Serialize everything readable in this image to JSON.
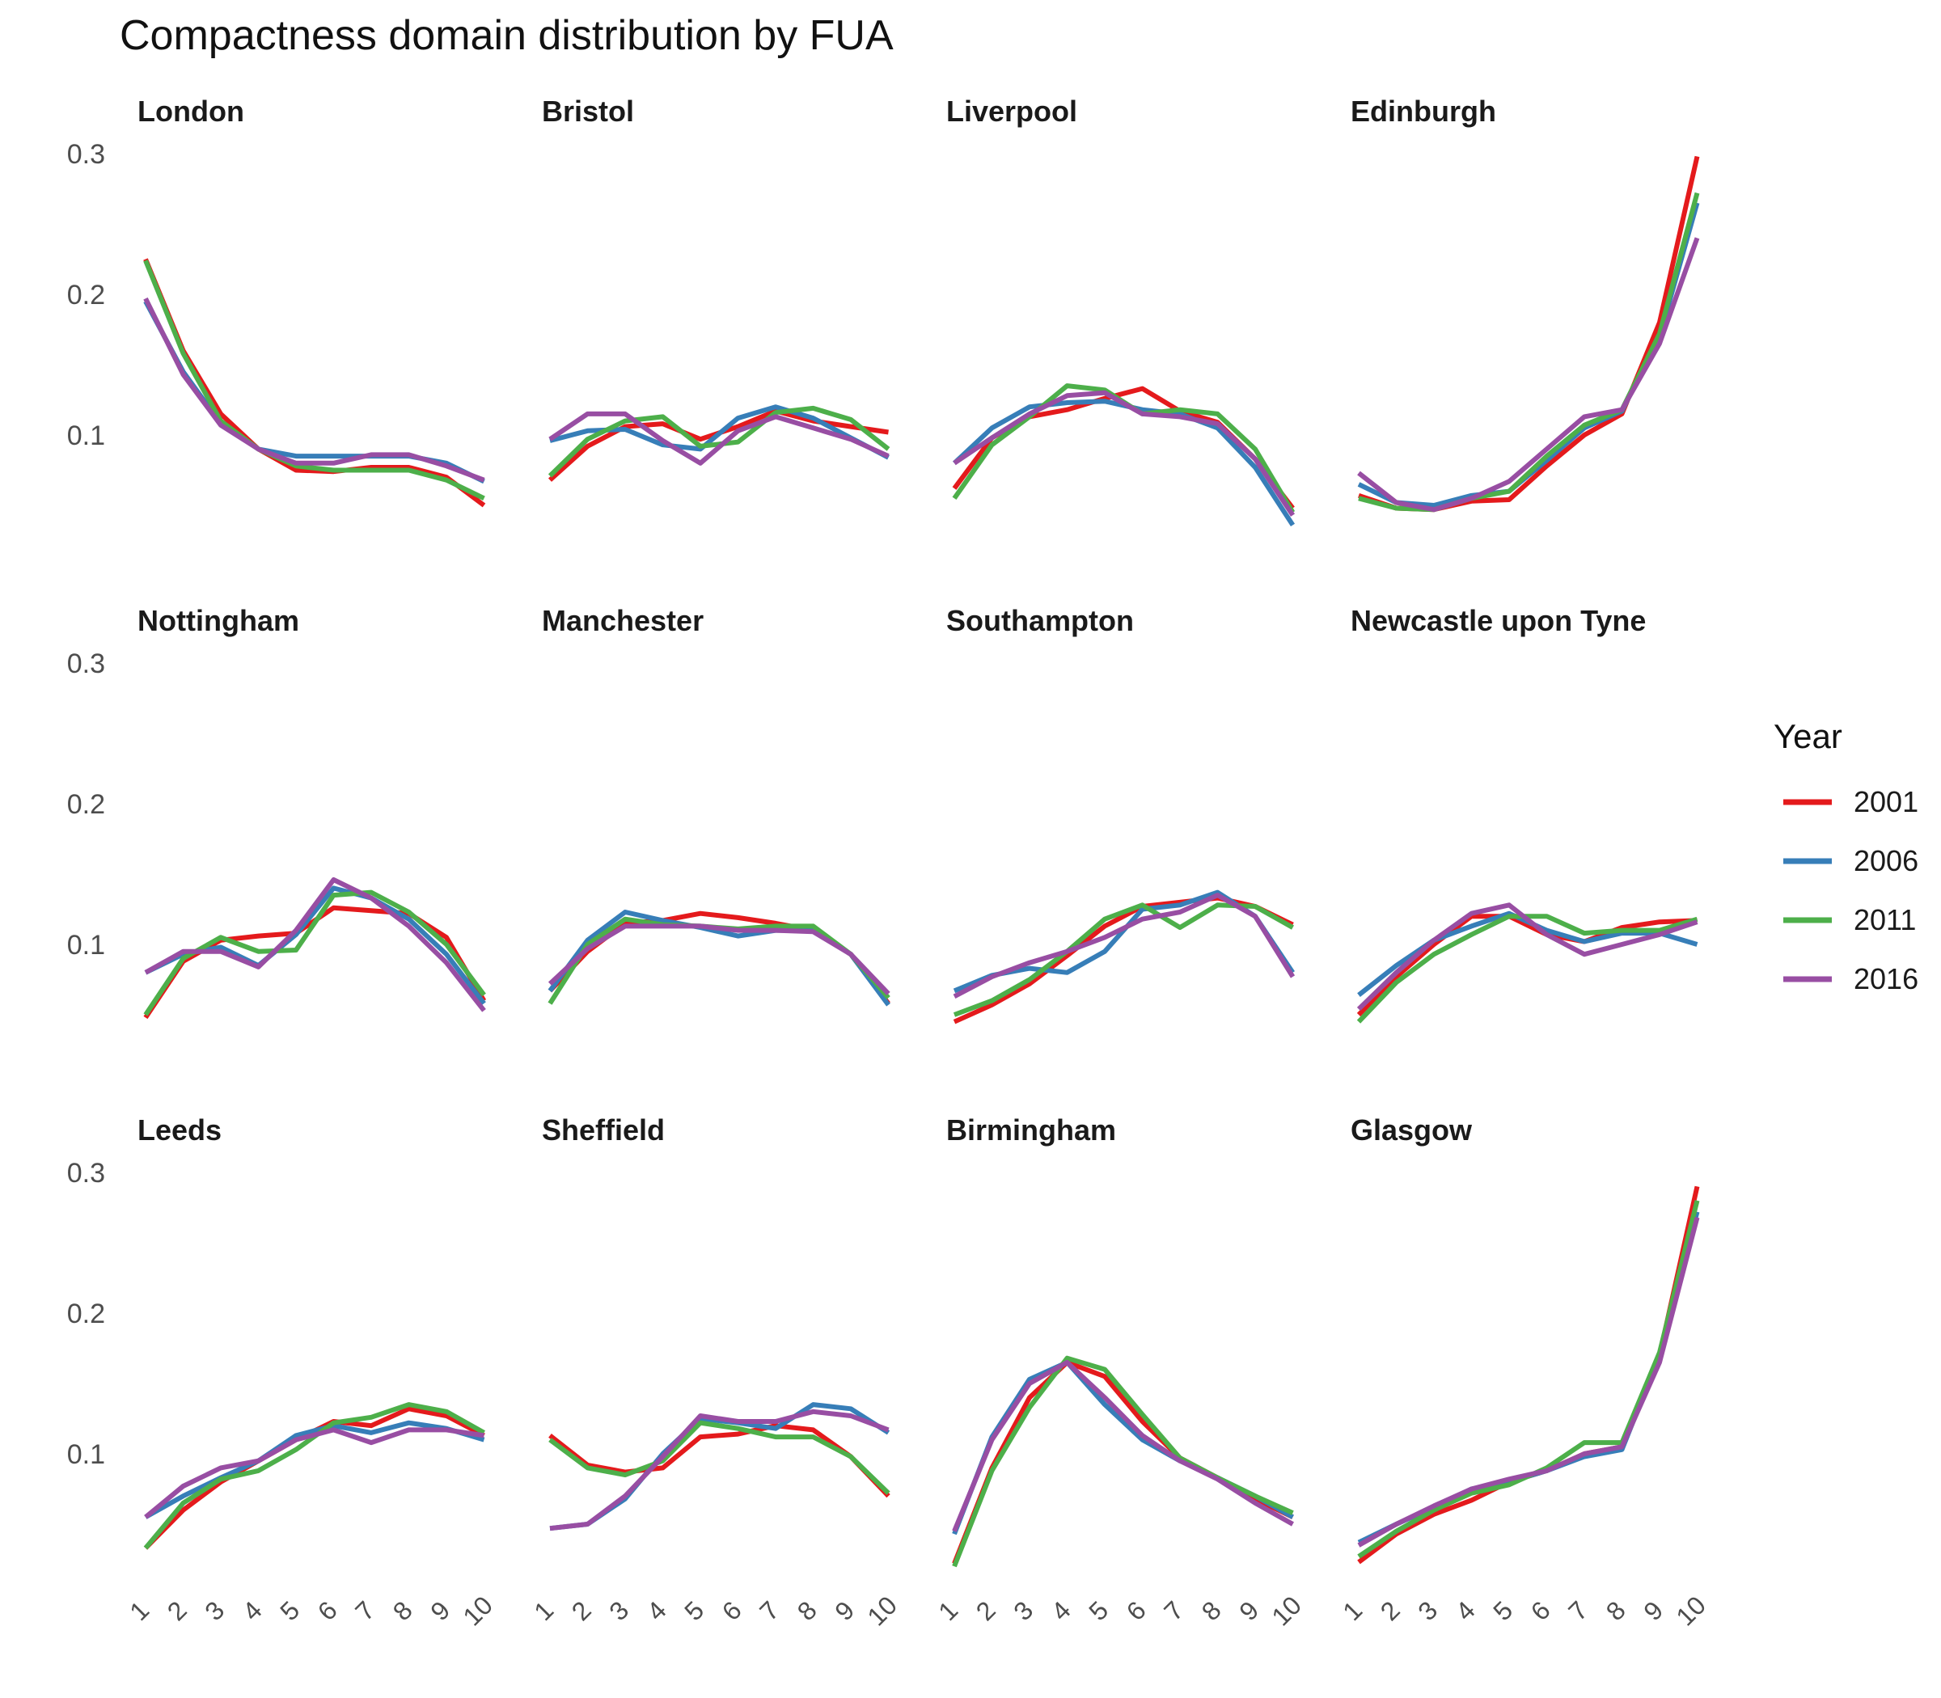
{
  "chart_data": {
    "type": "line",
    "title": "Compactness domain distribution by FUA",
    "xlabel": "",
    "ylabel": "",
    "x": [
      1,
      2,
      3,
      4,
      5,
      6,
      7,
      8,
      9,
      10
    ],
    "ylim": [
      0.02,
      0.3
    ],
    "yticks": [
      0.1,
      0.2,
      0.3
    ],
    "grid": false,
    "legend": {
      "title": "Year",
      "placement": "right",
      "entries": [
        "2001",
        "2006",
        "2011",
        "2016"
      ]
    },
    "colors": {
      "2001": "#E41A1C",
      "2006": "#377EB8",
      "2011": "#4DAF4A",
      "2016": "#984EA3"
    },
    "panels": [
      {
        "name": "London",
        "series": [
          {
            "name": "2001",
            "values": [
              0.225,
              0.16,
              0.115,
              0.09,
              0.075,
              0.074,
              0.077,
              0.077,
              0.07,
              0.05
            ]
          },
          {
            "name": "2006",
            "values": [
              0.195,
              0.145,
              0.108,
              0.09,
              0.085,
              0.085,
              0.085,
              0.085,
              0.08,
              0.067
            ]
          },
          {
            "name": "2011",
            "values": [
              0.224,
              0.158,
              0.11,
              0.09,
              0.078,
              0.075,
              0.075,
              0.075,
              0.068,
              0.055
            ]
          },
          {
            "name": "2016",
            "values": [
              0.197,
              0.143,
              0.107,
              0.09,
              0.08,
              0.08,
              0.086,
              0.086,
              0.078,
              0.068
            ]
          }
        ]
      },
      {
        "name": "Bristol",
        "series": [
          {
            "name": "2001",
            "values": [
              0.068,
              0.092,
              0.106,
              0.108,
              0.097,
              0.106,
              0.117,
              0.11,
              0.106,
              0.102
            ]
          },
          {
            "name": "2006",
            "values": [
              0.096,
              0.103,
              0.104,
              0.093,
              0.09,
              0.112,
              0.12,
              0.112,
              0.098,
              0.084
            ]
          },
          {
            "name": "2011",
            "values": [
              0.071,
              0.097,
              0.11,
              0.113,
              0.092,
              0.095,
              0.116,
              0.119,
              0.111,
              0.09
            ]
          },
          {
            "name": "2016",
            "values": [
              0.097,
              0.115,
              0.115,
              0.096,
              0.08,
              0.103,
              0.113,
              0.105,
              0.097,
              0.085
            ]
          }
        ]
      },
      {
        "name": "Liverpool",
        "series": [
          {
            "name": "2001",
            "values": [
              0.062,
              0.098,
              0.113,
              0.118,
              0.126,
              0.133,
              0.117,
              0.109,
              0.083,
              0.048
            ]
          },
          {
            "name": "2006",
            "values": [
              0.08,
              0.105,
              0.12,
              0.123,
              0.124,
              0.118,
              0.115,
              0.105,
              0.077,
              0.036
            ]
          },
          {
            "name": "2011",
            "values": [
              0.055,
              0.093,
              0.113,
              0.135,
              0.132,
              0.115,
              0.118,
              0.115,
              0.09,
              0.045
            ]
          },
          {
            "name": "2016",
            "values": [
              0.08,
              0.098,
              0.115,
              0.128,
              0.13,
              0.115,
              0.113,
              0.108,
              0.083,
              0.043
            ]
          }
        ]
      },
      {
        "name": "Edinburgh",
        "series": [
          {
            "name": "2001",
            "values": [
              0.057,
              0.048,
              0.047,
              0.053,
              0.054,
              0.078,
              0.1,
              0.115,
              0.18,
              0.298
            ]
          },
          {
            "name": "2006",
            "values": [
              0.065,
              0.052,
              0.05,
              0.057,
              0.06,
              0.082,
              0.105,
              0.117,
              0.17,
              0.265
            ]
          },
          {
            "name": "2011",
            "values": [
              0.055,
              0.048,
              0.047,
              0.055,
              0.06,
              0.085,
              0.107,
              0.118,
              0.172,
              0.272
            ]
          },
          {
            "name": "2016",
            "values": [
              0.073,
              0.052,
              0.047,
              0.055,
              0.067,
              0.09,
              0.113,
              0.118,
              0.165,
              0.24
            ]
          }
        ]
      },
      {
        "name": "Nottingham",
        "series": [
          {
            "name": "2001",
            "values": [
              0.048,
              0.088,
              0.103,
              0.106,
              0.108,
              0.126,
              0.124,
              0.122,
              0.105,
              0.06
            ]
          },
          {
            "name": "2006",
            "values": [
              0.08,
              0.093,
              0.098,
              0.085,
              0.107,
              0.14,
              0.133,
              0.118,
              0.093,
              0.058
            ]
          },
          {
            "name": "2011",
            "values": [
              0.05,
              0.09,
              0.105,
              0.095,
              0.096,
              0.135,
              0.137,
              0.123,
              0.1,
              0.064
            ]
          },
          {
            "name": "2016",
            "values": [
              0.08,
              0.095,
              0.095,
              0.084,
              0.11,
              0.146,
              0.133,
              0.113,
              0.087,
              0.053
            ]
          }
        ]
      },
      {
        "name": "Manchester",
        "series": [
          {
            "name": "2001",
            "values": [
              0.067,
              0.095,
              0.115,
              0.117,
              0.122,
              0.119,
              0.115,
              0.11,
              0.093,
              0.058
            ]
          },
          {
            "name": "2006",
            "values": [
              0.067,
              0.103,
              0.123,
              0.117,
              0.112,
              0.106,
              0.11,
              0.11,
              0.093,
              0.057
            ]
          },
          {
            "name": "2011",
            "values": [
              0.058,
              0.1,
              0.118,
              0.114,
              0.113,
              0.111,
              0.113,
              0.113,
              0.093,
              0.062
            ]
          },
          {
            "name": "2016",
            "values": [
              0.072,
              0.097,
              0.113,
              0.113,
              0.113,
              0.11,
              0.11,
              0.109,
              0.093,
              0.065
            ]
          }
        ]
      },
      {
        "name": "Southampton",
        "series": [
          {
            "name": "2001",
            "values": [
              0.045,
              0.057,
              0.072,
              0.092,
              0.113,
              0.127,
              0.13,
              0.133,
              0.127,
              0.114
            ]
          },
          {
            "name": "2006",
            "values": [
              0.067,
              0.078,
              0.083,
              0.08,
              0.095,
              0.125,
              0.128,
              0.137,
              0.12,
              0.08
            ]
          },
          {
            "name": "2011",
            "values": [
              0.05,
              0.06,
              0.075,
              0.095,
              0.118,
              0.128,
              0.112,
              0.128,
              0.127,
              0.112
            ]
          },
          {
            "name": "2016",
            "values": [
              0.063,
              0.077,
              0.087,
              0.095,
              0.105,
              0.118,
              0.123,
              0.135,
              0.12,
              0.077
            ]
          }
        ]
      },
      {
        "name": "Newcastle upon Tyne",
        "series": [
          {
            "name": "2001",
            "values": [
              0.05,
              0.077,
              0.1,
              0.12,
              0.12,
              0.107,
              0.102,
              0.112,
              0.116,
              0.117
            ]
          },
          {
            "name": "2006",
            "values": [
              0.064,
              0.085,
              0.103,
              0.113,
              0.122,
              0.11,
              0.102,
              0.108,
              0.108,
              0.1
            ]
          },
          {
            "name": "2011",
            "values": [
              0.045,
              0.073,
              0.093,
              0.107,
              0.12,
              0.12,
              0.108,
              0.11,
              0.11,
              0.118
            ]
          },
          {
            "name": "2016",
            "values": [
              0.054,
              0.08,
              0.103,
              0.122,
              0.128,
              0.107,
              0.093,
              0.1,
              0.107,
              0.116
            ]
          }
        ]
      },
      {
        "name": "Leeds",
        "series": [
          {
            "name": "2001",
            "values": [
              0.033,
              0.06,
              0.08,
              0.095,
              0.11,
              0.123,
              0.12,
              0.132,
              0.127,
              0.113
            ]
          },
          {
            "name": "2006",
            "values": [
              0.055,
              0.07,
              0.083,
              0.095,
              0.113,
              0.12,
              0.115,
              0.122,
              0.118,
              0.11
            ]
          },
          {
            "name": "2011",
            "values": [
              0.033,
              0.065,
              0.082,
              0.088,
              0.103,
              0.122,
              0.126,
              0.135,
              0.13,
              0.115
            ]
          },
          {
            "name": "2016",
            "values": [
              0.055,
              0.077,
              0.09,
              0.095,
              0.11,
              0.117,
              0.108,
              0.117,
              0.117,
              0.113
            ]
          }
        ]
      },
      {
        "name": "Sheffield",
        "series": [
          {
            "name": "2001",
            "values": [
              0.113,
              0.092,
              0.087,
              0.09,
              0.112,
              0.114,
              0.12,
              0.117,
              0.098,
              0.07
            ]
          },
          {
            "name": "2006",
            "values": [
              0.047,
              0.05,
              0.068,
              0.1,
              0.125,
              0.122,
              0.118,
              0.135,
              0.132,
              0.115
            ]
          },
          {
            "name": "2011",
            "values": [
              0.11,
              0.09,
              0.085,
              0.095,
              0.122,
              0.118,
              0.112,
              0.112,
              0.098,
              0.072
            ]
          },
          {
            "name": "2016",
            "values": [
              0.047,
              0.05,
              0.07,
              0.098,
              0.127,
              0.123,
              0.123,
              0.13,
              0.127,
              0.117
            ]
          }
        ]
      },
      {
        "name": "Birmingham",
        "series": [
          {
            "name": "2001",
            "values": [
              0.022,
              0.09,
              0.14,
              0.165,
              0.155,
              0.123,
              0.097,
              0.083,
              0.068,
              0.055
            ]
          },
          {
            "name": "2006",
            "values": [
              0.043,
              0.112,
              0.153,
              0.165,
              0.135,
              0.11,
              0.095,
              0.083,
              0.07,
              0.055
            ]
          },
          {
            "name": "2011",
            "values": [
              0.02,
              0.088,
              0.133,
              0.168,
              0.16,
              0.128,
              0.097,
              0.083,
              0.07,
              0.058
            ]
          },
          {
            "name": "2016",
            "values": [
              0.045,
              0.11,
              0.15,
              0.165,
              0.14,
              0.113,
              0.095,
              0.082,
              0.065,
              0.05
            ]
          }
        ]
      },
      {
        "name": "Glasgow",
        "series": [
          {
            "name": "2001",
            "values": [
              0.023,
              0.043,
              0.057,
              0.067,
              0.08,
              0.088,
              0.1,
              0.105,
              0.17,
              0.29
            ]
          },
          {
            "name": "2006",
            "values": [
              0.037,
              0.05,
              0.062,
              0.075,
              0.08,
              0.088,
              0.098,
              0.103,
              0.17,
              0.272
            ]
          },
          {
            "name": "2011",
            "values": [
              0.027,
              0.045,
              0.06,
              0.072,
              0.078,
              0.09,
              0.108,
              0.108,
              0.172,
              0.28
            ]
          },
          {
            "name": "2016",
            "values": [
              0.035,
              0.05,
              0.063,
              0.075,
              0.082,
              0.088,
              0.1,
              0.105,
              0.165,
              0.268
            ]
          }
        ]
      }
    ]
  }
}
